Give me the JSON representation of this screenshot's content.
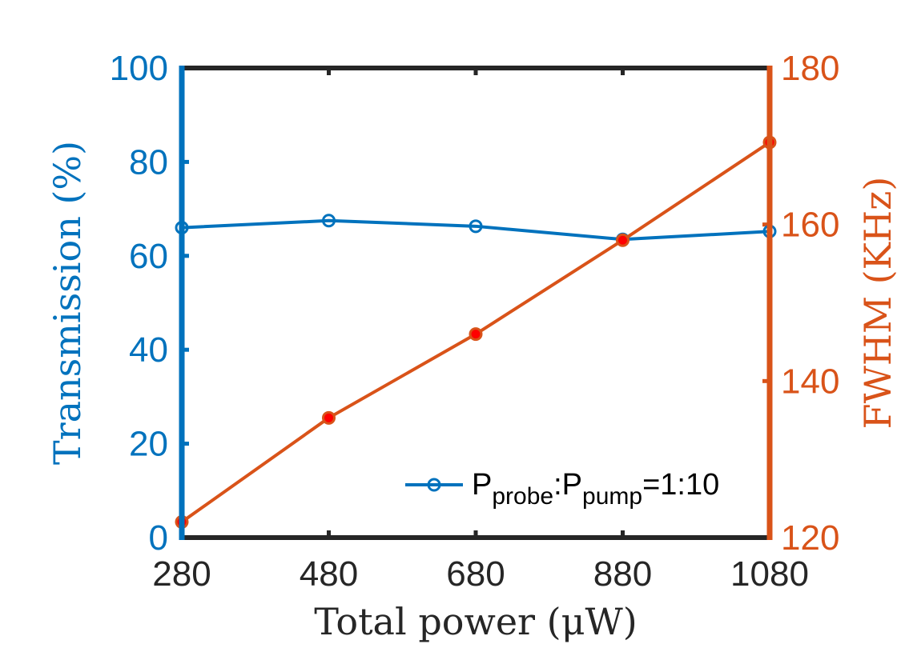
{
  "chart_data": {
    "type": "line",
    "x": [
      280,
      480,
      680,
      880,
      1080
    ],
    "xlabel": "Total power (μW)",
    "xlim": [
      280,
      1080
    ],
    "xticks": [
      "280",
      "480",
      "680",
      "880",
      "1080"
    ],
    "y_left": {
      "label": "Transmission (%)",
      "lim": [
        0,
        100
      ],
      "ticks": [
        "0",
        "20",
        "40",
        "60",
        "80",
        "100"
      ],
      "color": "#0072BD"
    },
    "y_right": {
      "label": "FWHM (KHz)",
      "lim": [
        120,
        180
      ],
      "ticks": [
        "120",
        "140",
        "160",
        "180"
      ],
      "color": "#D95319"
    },
    "series": [
      {
        "name": "Pprobe:Ppump=1:10",
        "axis": "left",
        "values": [
          66,
          67.5,
          66.3,
          63.5,
          65.2
        ],
        "color": "#0072BD",
        "marker": "open-circle"
      },
      {
        "name": "FWHM",
        "axis": "right",
        "values": [
          122,
          135.3,
          146,
          158,
          170.5
        ],
        "color": "#D95319",
        "marker": "filled-circle",
        "marker_fill": "#FF0000"
      }
    ],
    "legend": {
      "location": "bottom-right",
      "entry": {
        "P1": "P",
        "sub1": "probe",
        "colon": ":",
        "P2": "P",
        "sub2": "pump",
        "ratio": "=1:10"
      }
    },
    "box_color": "#262626"
  }
}
